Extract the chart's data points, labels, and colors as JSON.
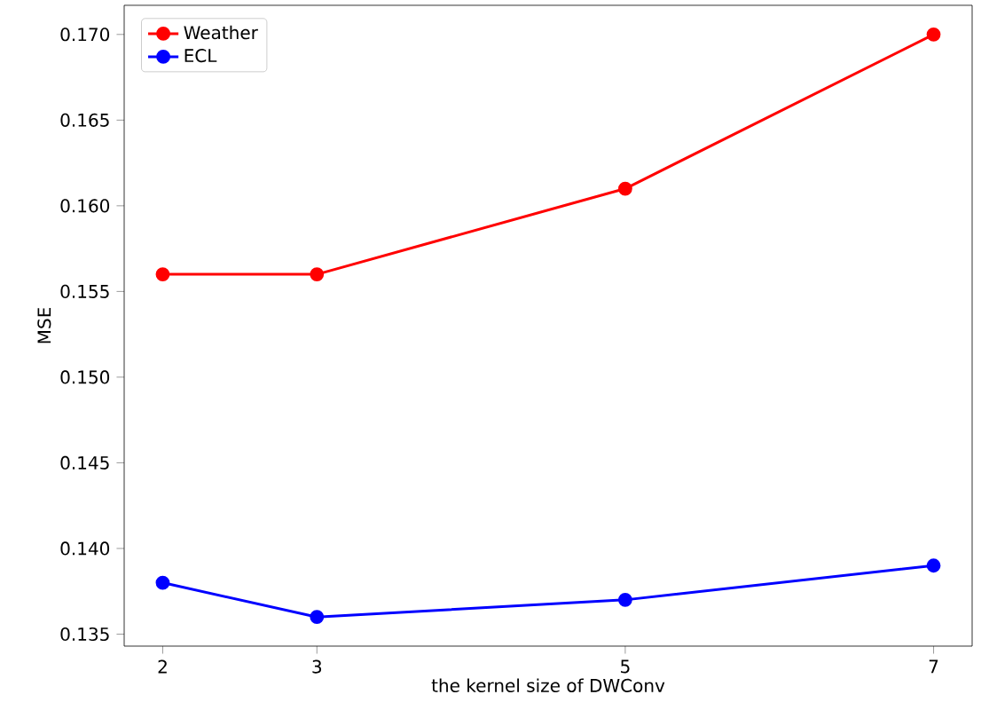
{
  "chart_data": {
    "type": "line",
    "xlabel": "the kernel size of DWConv",
    "ylabel": "MSE",
    "x": [
      2,
      3,
      5,
      7
    ],
    "series": [
      {
        "name": "Weather",
        "color": "#ff0000",
        "values": [
          0.156,
          0.156,
          0.161,
          0.17
        ]
      },
      {
        "name": "ECL",
        "color": "#0000ff",
        "values": [
          0.138,
          0.136,
          0.137,
          0.139
        ]
      }
    ],
    "xlim": [
      1.75,
      7.25
    ],
    "ylim": [
      0.1343,
      0.1717
    ],
    "xticks": [
      2,
      3,
      5,
      7
    ],
    "yticks": [
      {
        "value": 0.135,
        "label": "0.135"
      },
      {
        "value": 0.14,
        "label": "0.140"
      },
      {
        "value": 0.145,
        "label": "0.145"
      },
      {
        "value": 0.15,
        "label": "0.150"
      },
      {
        "value": 0.155,
        "label": "0.155"
      },
      {
        "value": 0.16,
        "label": "0.160"
      },
      {
        "value": 0.165,
        "label": "0.165"
      },
      {
        "value": 0.17,
        "label": "0.170"
      }
    ],
    "legend": "top left",
    "marker": "circle",
    "line_style": "solid",
    "grid": false
  }
}
